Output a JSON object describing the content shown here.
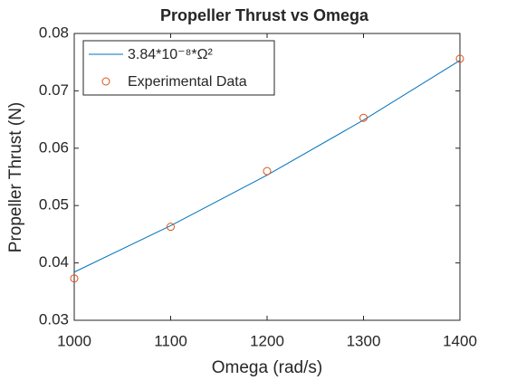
{
  "chart_data": {
    "type": "line",
    "title": "Propeller Thrust vs Omega",
    "x_label": "Omega (rad/s)",
    "y_label": "Propeller Thrust (N)",
    "series": [
      {
        "name": "3.84*10⁻⁸*Ω²",
        "kind": "line",
        "color": "#0072bd",
        "x": [
          1000,
          1100,
          1200,
          1300,
          1400
        ],
        "values": [
          0.0384,
          0.0465,
          0.0553,
          0.0649,
          0.0753
        ]
      },
      {
        "name": "Experimental Data",
        "kind": "marker",
        "color": "#d95319",
        "x": [
          1000,
          1100,
          1200,
          1300,
          1400
        ],
        "values": [
          0.0373,
          0.0463,
          0.056,
          0.0653,
          0.0756
        ]
      }
    ],
    "xlim": [
      1000,
      1400
    ],
    "xticks": [
      1000,
      1100,
      1200,
      1300,
      1400
    ],
    "ylim": [
      0.03,
      0.08
    ],
    "yticks": [
      0.03,
      0.04,
      0.05,
      0.06,
      0.07,
      0.08
    ],
    "legend": "upper left",
    "grid": false
  }
}
